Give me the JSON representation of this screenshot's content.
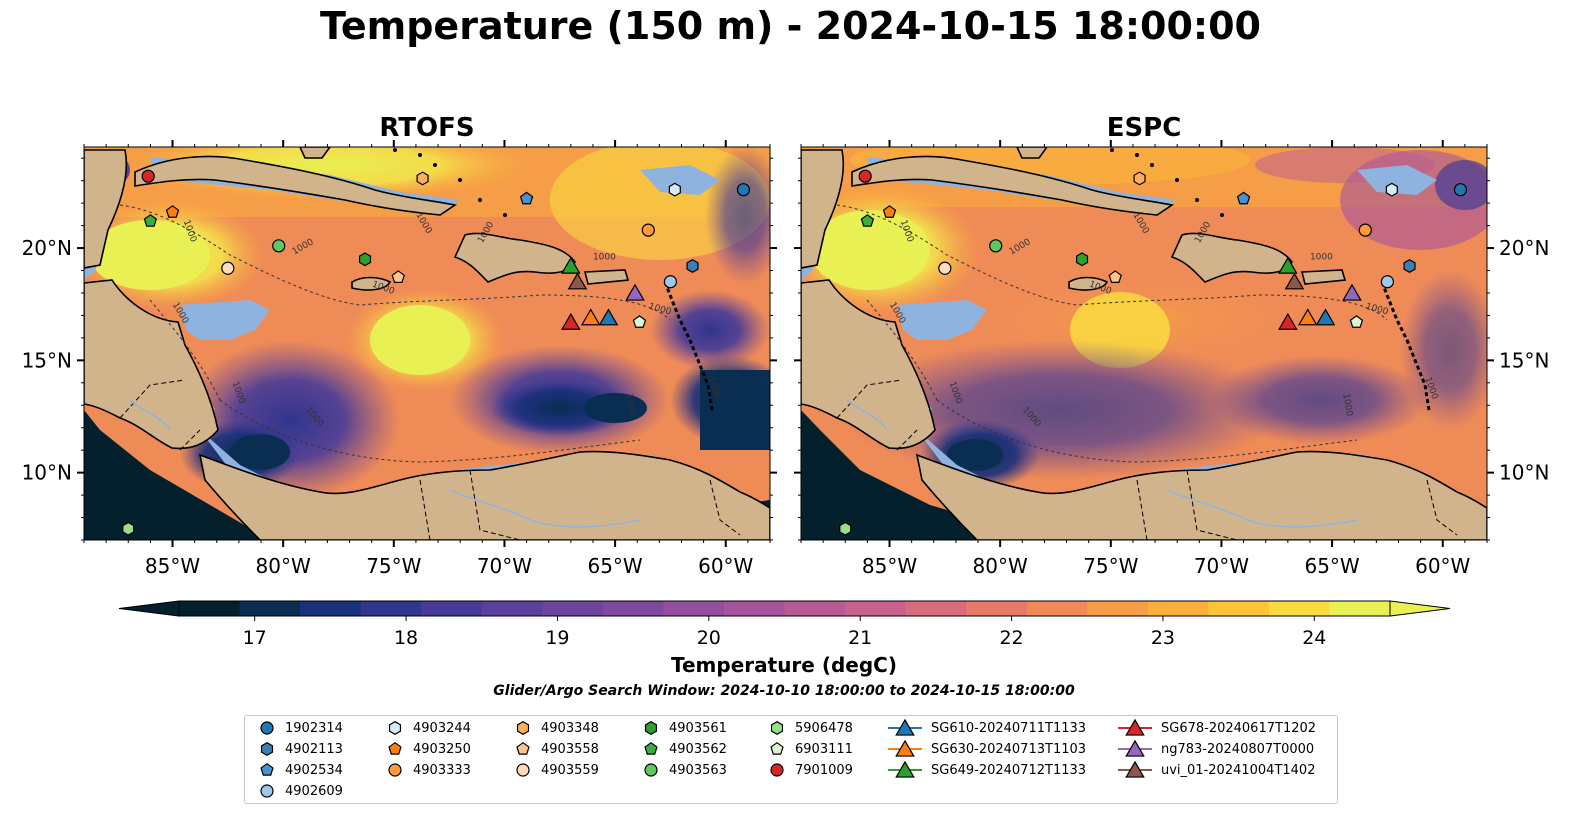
{
  "title": "Temperature (150 m) - 2024-10-15 18:00:00",
  "panels": [
    {
      "title": "RTOFS"
    },
    {
      "title": "ESPC"
    }
  ],
  "axes": {
    "lon_ticks": [
      "85°W",
      "80°W",
      "75°W",
      "70°W",
      "65°W",
      "60°W"
    ],
    "lat_ticks": [
      "20°N",
      "15°N",
      "10°N"
    ],
    "lon_range": [
      -89,
      -58
    ],
    "lat_range": [
      7,
      24.5
    ]
  },
  "contour_label": "1000",
  "colorbar": {
    "label": "Temperature (degC)",
    "ticks": [
      "17",
      "18",
      "19",
      "20",
      "21",
      "22",
      "23",
      "24"
    ],
    "range": [
      16.5,
      24.5
    ],
    "colors": [
      "#04202d",
      "#0a2d52",
      "#19307a",
      "#30358e",
      "#463b98",
      "#5a3f9c",
      "#6d449e",
      "#7f499f",
      "#924f9f",
      "#a5549c",
      "#b85b94",
      "#c9628a",
      "#d96c7c",
      "#e57a6a",
      "#ef8b57",
      "#f69d48",
      "#fbb03c",
      "#fcc436",
      "#f9da3f",
      "#e9f054"
    ]
  },
  "search_window": "Glider/Argo Search Window: 2024-10-10 18:00:00 to 2024-10-15 18:00:00",
  "colors": {
    "land": "#d2b48c",
    "shelf": "#8eb3de",
    "deep_ocean": "#04202d"
  },
  "legend": [
    {
      "label": "1902314",
      "marker": "circle",
      "color": "#1f77b4"
    },
    {
      "label": "4902113",
      "marker": "hexagon",
      "color": "#3a80b8"
    },
    {
      "label": "4902534",
      "marker": "pentagon",
      "color": "#4a92cf"
    },
    {
      "label": "4902609",
      "marker": "circle",
      "color": "#9cc8ea"
    },
    {
      "label": "4903244",
      "marker": "hexagon",
      "color": "#d6eaf8"
    },
    {
      "label": "4903250",
      "marker": "pentagon",
      "color": "#ff7f0e"
    },
    {
      "label": "4903333",
      "marker": "circle",
      "color": "#ff9a3c"
    },
    {
      "label": "4903348",
      "marker": "hexagon",
      "color": "#ffae5e"
    },
    {
      "label": "4903558",
      "marker": "pentagon",
      "color": "#ffc48c"
    },
    {
      "label": "4903559",
      "marker": "circle",
      "color": "#ffdcbb"
    },
    {
      "label": "4903561",
      "marker": "hexagon",
      "color": "#2ca02c"
    },
    {
      "label": "4903562",
      "marker": "pentagon",
      "color": "#3aad3a"
    },
    {
      "label": "4903563",
      "marker": "circle",
      "color": "#5ec95e"
    },
    {
      "label": "5906478",
      "marker": "hexagon",
      "color": "#98df8a"
    },
    {
      "label": "6903111",
      "marker": "pentagon",
      "color": "#dcf5d2"
    },
    {
      "label": "7901009",
      "marker": "circle",
      "color": "#d62728"
    },
    {
      "label": "SG610-20240711T1133",
      "marker": "triangle",
      "color": "#1f77b4"
    },
    {
      "label": "SG630-20240713T1103",
      "marker": "triangle",
      "color": "#ff7f0e"
    },
    {
      "label": "SG649-20240712T1133",
      "marker": "triangle",
      "color": "#2ca02c"
    },
    {
      "label": "SG678-20240617T1202",
      "marker": "triangle",
      "color": "#d62728"
    },
    {
      "label": "ng783-20240807T0000",
      "marker": "triangle",
      "color": "#9467bd"
    },
    {
      "label": "uvi_01-20241004T1402",
      "marker": "triangle",
      "color": "#8c564b"
    }
  ],
  "observations": [
    {
      "id": "1902314",
      "lon": -59.2,
      "lat": 22.6
    },
    {
      "id": "4902113",
      "lon": -61.5,
      "lat": 19.2
    },
    {
      "id": "4902534",
      "lon": -69.0,
      "lat": 22.2
    },
    {
      "id": "4902609",
      "lon": -62.5,
      "lat": 18.5
    },
    {
      "id": "4903244",
      "lon": -62.3,
      "lat": 22.6
    },
    {
      "id": "4903250",
      "lon": -85.0,
      "lat": 21.6
    },
    {
      "id": "4903333",
      "lon": -63.5,
      "lat": 20.8
    },
    {
      "id": "4903348",
      "lon": -73.7,
      "lat": 23.1
    },
    {
      "id": "4903558",
      "lon": -74.8,
      "lat": 18.7
    },
    {
      "id": "4903559",
      "lon": -82.5,
      "lat": 19.1
    },
    {
      "id": "4903561",
      "lon": -76.3,
      "lat": 19.5
    },
    {
      "id": "4903562",
      "lon": -86.0,
      "lat": 21.2
    },
    {
      "id": "4903563",
      "lon": -80.2,
      "lat": 20.1
    },
    {
      "id": "5906478",
      "lon": -87.0,
      "lat": 7.5
    },
    {
      "id": "6903111",
      "lon": -63.9,
      "lat": 16.7
    },
    {
      "id": "7901009",
      "lon": -86.1,
      "lat": 23.2
    },
    {
      "id": "SG610-20240711T1133",
      "lon": -65.3,
      "lat": 16.9
    },
    {
      "id": "SG630-20240713T1103",
      "lon": -66.1,
      "lat": 16.9
    },
    {
      "id": "SG649-20240712T1133",
      "lon": -67.0,
      "lat": 19.2
    },
    {
      "id": "SG678-20240617T1202",
      "lon": -67.0,
      "lat": 16.7
    },
    {
      "id": "ng783-20240807T0000",
      "lon": -64.1,
      "lat": 18.0
    },
    {
      "id": "uvi_01-20241004T1402",
      "lon": -66.7,
      "lat": 18.5
    }
  ]
}
